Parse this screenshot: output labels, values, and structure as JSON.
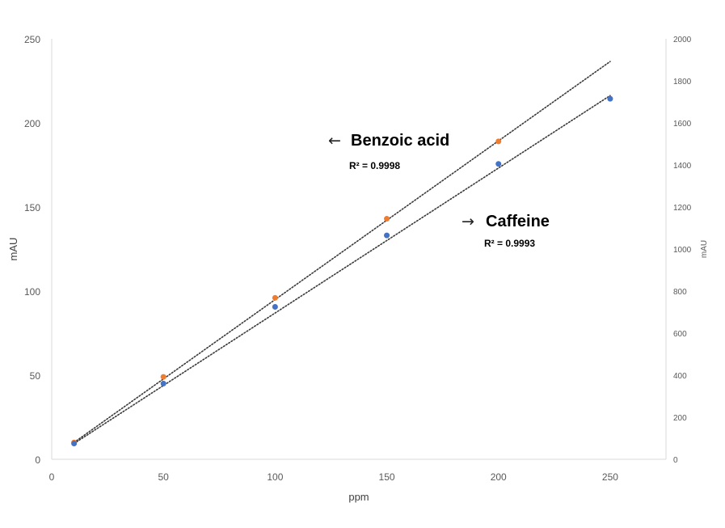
{
  "chart_data": {
    "type": "scatter",
    "x_axis": {
      "label": "ppm",
      "range": [
        0,
        275
      ],
      "ticks": [
        0,
        50,
        100,
        150,
        200,
        250
      ]
    },
    "y_axis_left": {
      "label": "mAU",
      "range": [
        0,
        250
      ],
      "ticks": [
        0,
        50,
        100,
        150,
        200,
        250
      ]
    },
    "y_axis_right": {
      "label": "mAU",
      "range": [
        0,
        2000
      ],
      "ticks": [
        0,
        200,
        400,
        600,
        800,
        1000,
        1200,
        1400,
        1600,
        1800,
        2000
      ]
    },
    "grid": false,
    "legend": "none",
    "series": [
      {
        "name": "Benzoic acid",
        "axis": "left",
        "color": "#ED7D31",
        "x": [
          10,
          50,
          100,
          150,
          200
        ],
        "y": [
          10,
          49,
          96,
          143,
          189
        ],
        "trendline": {
          "type": "linear",
          "x_range": [
            10,
            250
          ],
          "y_range": [
            10,
            236.5
          ],
          "r_squared_label": "R² = 0.9998"
        },
        "label_arrow": "←"
      },
      {
        "name": "Caffeine",
        "axis": "right",
        "color": "#4472C4",
        "x": [
          10,
          50,
          100,
          150,
          200,
          250
        ],
        "y": [
          75,
          360,
          725,
          1065,
          1405,
          1715
        ],
        "trendline": {
          "type": "linear",
          "x_range": [
            10,
            250
          ],
          "y_range": [
            75,
            1730
          ],
          "r_squared_label": "R² = 0.9993"
        },
        "label_arrow": "→"
      }
    ]
  }
}
